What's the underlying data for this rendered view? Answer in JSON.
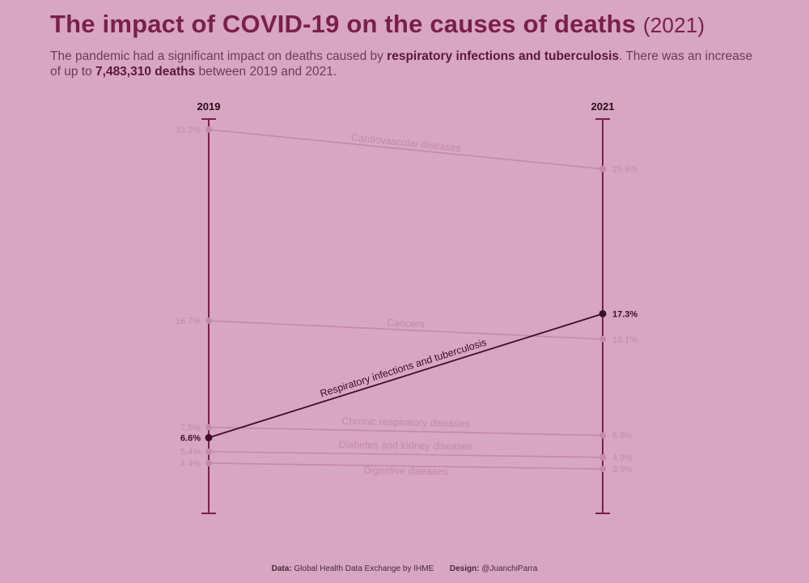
{
  "title": {
    "main": "The impact of COVID-19 on the causes of deaths",
    "year": "(2021)"
  },
  "subtitle": {
    "part1": "The pandemic had a significant impact on deaths caused by ",
    "bold1": "respiratory infections and tuberculosis",
    "part2": ". There was an increase of up to ",
    "bold2": "7,483,310 deaths",
    "part3": " between 2019 and 2021."
  },
  "footer": {
    "data_label": "Data:",
    "data_value": "Global Health Data Exchange by IHME",
    "design_label": "Design:",
    "design_value": "@JuanchiParra"
  },
  "colors": {
    "background": "#d7a6c1",
    "axis": "#7a1f4b",
    "muted": "#c48aa9",
    "highlight": "#3d0f27",
    "title": "#7a1f4b"
  },
  "chart_data": {
    "type": "line",
    "chart_subtype": "slope",
    "x": [
      "2019",
      "2021"
    ],
    "ylim": [
      0,
      34.5
    ],
    "grid": false,
    "series": [
      {
        "name": "Cardiovascular diseases",
        "values": [
          33.2,
          29.8
        ],
        "labels": [
          "33.2%",
          "29.8%"
        ],
        "highlight": false
      },
      {
        "name": "Cancers",
        "values": [
          16.7,
          15.1
        ],
        "labels": [
          "16.7%",
          "15.1%"
        ],
        "highlight": false
      },
      {
        "name": "Respiratory infections and tuberculosis",
        "values": [
          6.6,
          17.3
        ],
        "labels": [
          "6.6%",
          "17.3%"
        ],
        "highlight": true
      },
      {
        "name": "Chronic respiratory diseases",
        "values": [
          7.5,
          6.8
        ],
        "labels": [
          "7.5%",
          "6.8%"
        ],
        "highlight": false
      },
      {
        "name": "Diabetes and kidney diseases",
        "values": [
          5.4,
          4.9
        ],
        "labels": [
          "5.4%",
          "4.9%"
        ],
        "highlight": false
      },
      {
        "name": "Digestive diseases",
        "values": [
          4.4,
          3.9
        ],
        "labels": [
          "4.4%",
          "3.9%"
        ],
        "highlight": false
      }
    ]
  }
}
